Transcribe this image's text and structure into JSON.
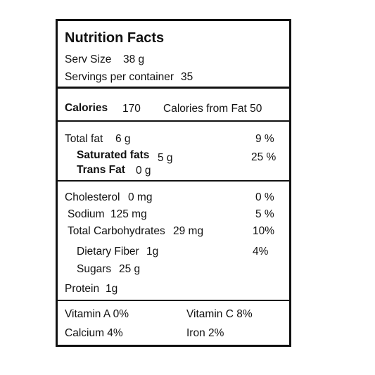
{
  "title": "Nutrition Facts",
  "serving": {
    "size_label": "Serv Size",
    "size_value": "38 g",
    "per_container_label": "Servings per container",
    "per_container_value": "35"
  },
  "calories": {
    "label": "Calories",
    "value": "170",
    "from_fat": "Calories from Fat 50"
  },
  "fats": {
    "total_label": "Total fat",
    "total_value": "6 g",
    "total_dv": "9 %",
    "sat_label": "Saturated fats",
    "sat_value": "5 g",
    "sat_dv": "25 %",
    "trans_label": "Trans Fat",
    "trans_value": "0 g"
  },
  "nutrients": {
    "chol_label": "Cholesterol",
    "chol_value": "0 mg",
    "chol_dv": "0 %",
    "sodium_label": "Sodium",
    "sodium_value": "125 mg",
    "sodium_dv": "5 %",
    "carb_label": "Total Carbohydrates",
    "carb_value": "29 mg",
    "carb_dv": "10%",
    "fiber_label": "Dietary Fiber",
    "fiber_value": "1g",
    "fiber_dv": "4%",
    "sugars_label": "Sugars",
    "sugars_value": "25 g",
    "protein_label": "Protein",
    "protein_value": "1g"
  },
  "vitamins": {
    "vit_a": "Vitamin A 0%",
    "vit_c": "Vitamin C 8%",
    "calcium": "Calcium 4%",
    "iron": "Iron 2%"
  }
}
